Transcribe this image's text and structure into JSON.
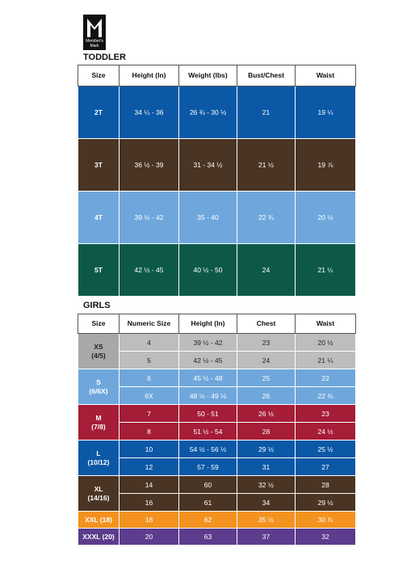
{
  "logo": {
    "line1": "Member's",
    "line2": "Mark"
  },
  "toddler": {
    "title": "TODDLER",
    "header": [
      "Size",
      "Height (In)",
      "Weight (lbs)",
      "Bust/Chest",
      "Waist"
    ],
    "rows": [
      [
        "2T",
        "34 ¼ - 36",
        "26 ¾ - 30 ½",
        "21",
        "19 ¼"
      ],
      [
        "3T",
        "36 ½ - 39",
        "31 - 34 ½",
        "21 ½",
        "19 ⅞"
      ],
      [
        "4T",
        "39 ½ - 42",
        "35 - 40",
        "22 ¾",
        "20 ½"
      ],
      [
        "5T",
        "42 ½ - 45",
        "40 ½ - 50",
        "24",
        "21 ¼"
      ]
    ]
  },
  "girls": {
    "title": "GIRLS",
    "header": [
      "Size",
      "Numeric Size",
      "Height (In)",
      "Chest",
      "Waist"
    ],
    "groups": [
      {
        "size": [
          "XS",
          "(4/5)"
        ],
        "rows": [
          [
            "4",
            "39 ½ - 42",
            "23",
            "20 ½"
          ],
          [
            "5",
            "42 ½ - 45",
            "24",
            "21 ¼"
          ]
        ]
      },
      {
        "size": [
          "S",
          "(6/6X)"
        ],
        "rows": [
          [
            "6",
            "45 ½ - 48",
            "25",
            "22"
          ],
          [
            "6X",
            "48 ½ - 49 ½",
            "26",
            "22 ¾"
          ]
        ]
      },
      {
        "size": [
          "M",
          "(7/8)"
        ],
        "rows": [
          [
            "7",
            "50 - 51",
            "26 ½",
            "23"
          ],
          [
            "8",
            "51 ½ - 54",
            "28",
            "24 ½"
          ]
        ]
      },
      {
        "size": [
          "L",
          "(10/12)"
        ],
        "rows": [
          [
            "10",
            "54 ½ - 56 ½",
            "29 ½",
            "25 ½"
          ],
          [
            "12",
            "57 - 59",
            "31",
            "27"
          ]
        ]
      },
      {
        "size": [
          "XL",
          "(14/16)"
        ],
        "rows": [
          [
            "14",
            "60",
            "32 ½",
            "28"
          ],
          [
            "16",
            "61",
            "34",
            "29 ½"
          ]
        ]
      },
      {
        "size": [
          "XXL (18)"
        ],
        "rows": [
          [
            "18",
            "62",
            "35 ½",
            "30 ¾"
          ]
        ]
      },
      {
        "size": [
          "XXXL (20)"
        ],
        "rows": [
          [
            "20",
            "63",
            "37",
            "32"
          ]
        ]
      }
    ]
  }
}
